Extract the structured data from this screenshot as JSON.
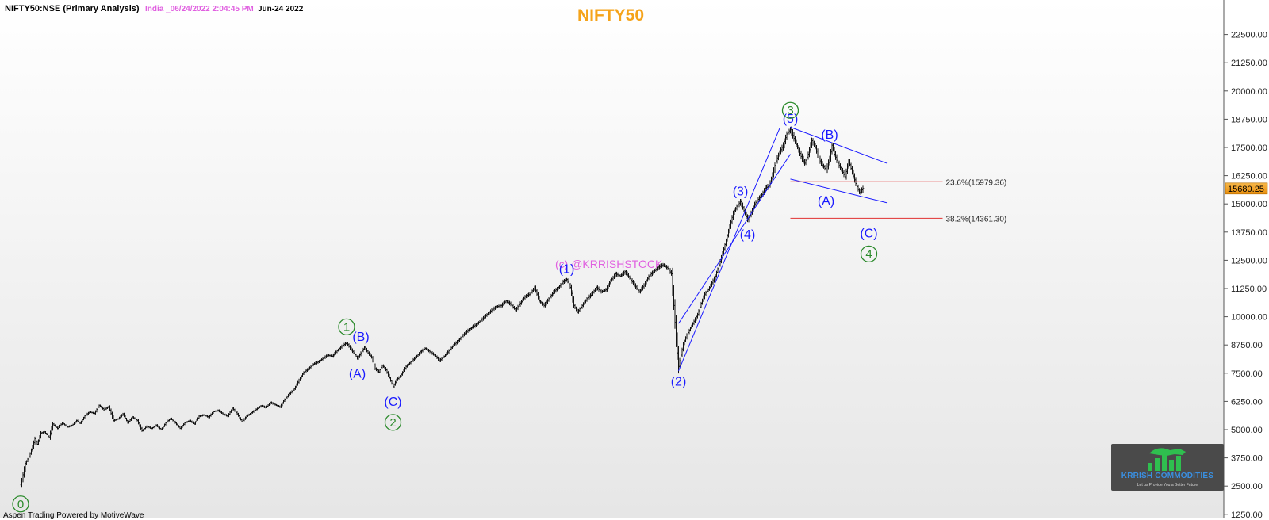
{
  "header": {
    "symbol": "NIFTY50:NSE (Primary Analysis)",
    "stamp": "India _06/24/2022 2:04:45 PM",
    "date": "Jun-24 2022"
  },
  "watermark": "(c) @KRRISHSTOCK",
  "footer": "Aspen Trading Powered by MotiveWave",
  "logo": {
    "name": "KRRISH COMMODITIES",
    "tagline": "Let us Provide You a Better Future"
  },
  "colors": {
    "title": "#f5a31a",
    "wave_minor": "#1a1aff",
    "wave_primary": "#2a8a2a",
    "fib_line": "#e03030",
    "last_price_badge": "#f39c12",
    "watermark": "#e060e0",
    "bars": "#111111"
  },
  "chart_data": {
    "type": "line",
    "title": "NIFTY50",
    "ylim": [
      1000,
      23000
    ],
    "y_ticks": [
      "1250.00",
      "2500.00",
      "3750.00",
      "5000.00",
      "6250.00",
      "7500.00",
      "8750.00",
      "10000.00",
      "11250.00",
      "12500.00",
      "13750.00",
      "15000.00",
      "16250.00",
      "17500.00",
      "18750.00",
      "20000.00",
      "21250.00",
      "22500.00"
    ],
    "grid": false,
    "last_price": "15680.25",
    "series": [
      {
        "values": [
          [
            0,
            2550
          ],
          [
            2,
            3000
          ],
          [
            4,
            3500
          ],
          [
            7,
            3800
          ],
          [
            10,
            4250
          ],
          [
            12,
            4600
          ],
          [
            14,
            4350
          ],
          [
            17,
            4850
          ],
          [
            20,
            4900
          ],
          [
            24,
            4650
          ],
          [
            27,
            5250
          ],
          [
            31,
            5050
          ],
          [
            35,
            5300
          ],
          [
            39,
            5120
          ],
          [
            43,
            5180
          ],
          [
            47,
            5400
          ],
          [
            50,
            5280
          ],
          [
            54,
            5620
          ],
          [
            58,
            5780
          ],
          [
            62,
            5720
          ],
          [
            66,
            6080
          ],
          [
            70,
            5880
          ],
          [
            74,
            6020
          ],
          [
            78,
            5400
          ],
          [
            82,
            5480
          ],
          [
            86,
            5700
          ],
          [
            90,
            5300
          ],
          [
            94,
            5560
          ],
          [
            98,
            5400
          ],
          [
            102,
            4950
          ],
          [
            106,
            5150
          ],
          [
            110,
            5050
          ],
          [
            114,
            5200
          ],
          [
            118,
            5000
          ],
          [
            122,
            5300
          ],
          [
            126,
            5500
          ],
          [
            130,
            5300
          ],
          [
            134,
            5050
          ],
          [
            138,
            5300
          ],
          [
            142,
            5400
          ],
          [
            146,
            5250
          ],
          [
            150,
            5600
          ],
          [
            154,
            5650
          ],
          [
            158,
            5550
          ],
          [
            162,
            5800
          ],
          [
            166,
            5850
          ],
          [
            170,
            5700
          ],
          [
            174,
            5600
          ],
          [
            178,
            5950
          ],
          [
            182,
            5700
          ],
          [
            186,
            5350
          ],
          [
            190,
            5600
          ],
          [
            194,
            5750
          ],
          [
            198,
            5900
          ],
          [
            202,
            6050
          ],
          [
            206,
            5980
          ],
          [
            210,
            6200
          ],
          [
            214,
            6100
          ],
          [
            218,
            6000
          ],
          [
            222,
            6350
          ],
          [
            226,
            6600
          ],
          [
            230,
            6800
          ],
          [
            234,
            7200
          ],
          [
            238,
            7550
          ],
          [
            242,
            7700
          ],
          [
            246,
            7900
          ],
          [
            250,
            8000
          ],
          [
            254,
            8150
          ],
          [
            258,
            8300
          ],
          [
            262,
            8250
          ],
          [
            266,
            8500
          ],
          [
            270,
            8700
          ],
          [
            274,
            8850
          ],
          [
            277,
            8600
          ],
          [
            280,
            8400
          ],
          [
            283,
            8150
          ],
          [
            286,
            8400
          ],
          [
            289,
            8650
          ],
          [
            292,
            8400
          ],
          [
            295,
            8200
          ],
          [
            298,
            7700
          ],
          [
            301,
            7550
          ],
          [
            304,
            7850
          ],
          [
            307,
            7650
          ],
          [
            310,
            7300
          ],
          [
            313,
            6900
          ],
          [
            316,
            7200
          ],
          [
            320,
            7450
          ],
          [
            324,
            7800
          ],
          [
            328,
            8000
          ],
          [
            332,
            8200
          ],
          [
            336,
            8450
          ],
          [
            340,
            8600
          ],
          [
            344,
            8450
          ],
          [
            348,
            8300
          ],
          [
            352,
            8050
          ],
          [
            356,
            8250
          ],
          [
            360,
            8500
          ],
          [
            364,
            8750
          ],
          [
            368,
            8950
          ],
          [
            372,
            9200
          ],
          [
            376,
            9400
          ],
          [
            380,
            9550
          ],
          [
            384,
            9700
          ],
          [
            388,
            9900
          ],
          [
            392,
            10100
          ],
          [
            396,
            10300
          ],
          [
            400,
            10450
          ],
          [
            404,
            10500
          ],
          [
            408,
            10700
          ],
          [
            412,
            10550
          ],
          [
            416,
            10300
          ],
          [
            420,
            10600
          ],
          [
            424,
            10900
          ],
          [
            428,
            11000
          ],
          [
            432,
            11300
          ],
          [
            436,
            10700
          ],
          [
            440,
            10500
          ],
          [
            444,
            10800
          ],
          [
            448,
            11100
          ],
          [
            452,
            11300
          ],
          [
            456,
            11550
          ],
          [
            459,
            11650
          ],
          [
            462,
            11300
          ],
          [
            465,
            10500
          ],
          [
            468,
            10200
          ],
          [
            472,
            10500
          ],
          [
            476,
            10800
          ],
          [
            480,
            11000
          ],
          [
            484,
            11300
          ],
          [
            488,
            11100
          ],
          [
            492,
            11200
          ],
          [
            496,
            11600
          ],
          [
            500,
            11900
          ],
          [
            504,
            11800
          ],
          [
            508,
            12000
          ],
          [
            512,
            11700
          ],
          [
            516,
            11400
          ],
          [
            520,
            11100
          ],
          [
            524,
            11400
          ],
          [
            528,
            11800
          ],
          [
            532,
            12000
          ],
          [
            536,
            12200
          ],
          [
            540,
            12300
          ],
          [
            544,
            12150
          ],
          [
            547,
            11900
          ],
          [
            549,
            10500
          ],
          [
            551,
            9000
          ],
          [
            553,
            7800
          ],
          [
            555,
            8300
          ],
          [
            557,
            8800
          ],
          [
            560,
            9200
          ],
          [
            563,
            9500
          ],
          [
            566,
            9800
          ],
          [
            569,
            10100
          ],
          [
            572,
            10600
          ],
          [
            575,
            11000
          ],
          [
            578,
            11200
          ],
          [
            581,
            11500
          ],
          [
            584,
            11800
          ],
          [
            587,
            12300
          ],
          [
            590,
            12800
          ],
          [
            593,
            13400
          ],
          [
            596,
            14000
          ],
          [
            599,
            14600
          ],
          [
            602,
            14900
          ],
          [
            605,
            15100
          ],
          [
            608,
            14700
          ],
          [
            611,
            14300
          ],
          [
            614,
            14600
          ],
          [
            617,
            15000
          ],
          [
            620,
            15200
          ],
          [
            623,
            15400
          ],
          [
            626,
            15700
          ],
          [
            629,
            15800
          ],
          [
            632,
            16300
          ],
          [
            635,
            16900
          ],
          [
            638,
            17300
          ],
          [
            641,
            17600
          ],
          [
            644,
            18100
          ],
          [
            647,
            18300
          ],
          [
            650,
            17900
          ],
          [
            653,
            17500
          ],
          [
            656,
            17100
          ],
          [
            659,
            16800
          ],
          [
            662,
            17200
          ],
          [
            665,
            17800
          ],
          [
            668,
            17500
          ],
          [
            671,
            17000
          ],
          [
            674,
            16700
          ],
          [
            677,
            16500
          ],
          [
            680,
            17000
          ],
          [
            682,
            17600
          ],
          [
            684,
            17200
          ],
          [
            687,
            16800
          ],
          [
            690,
            16500
          ],
          [
            693,
            16200
          ],
          [
            696,
            16900
          ],
          [
            699,
            16400
          ],
          [
            702,
            15900
          ],
          [
            705,
            15500
          ],
          [
            708,
            15680.25
          ]
        ]
      }
    ],
    "annotations": [
      {
        "label": "0",
        "degree": "primary",
        "x": 0,
        "y": 2550
      },
      {
        "label": "1",
        "degree": "primary",
        "x": 274,
        "y": 8850
      },
      {
        "label": "(B)",
        "degree": "minor",
        "x": 286,
        "y": 8650
      },
      {
        "label": "(A)",
        "degree": "minor",
        "x": 283,
        "y": 8150
      },
      {
        "label": "(C)",
        "degree": "minor",
        "x": 313,
        "y": 6900
      },
      {
        "label": "2",
        "degree": "primary",
        "x": 313,
        "y": 6900
      },
      {
        "label": "(1)",
        "degree": "minor",
        "x": 459,
        "y": 11650
      },
      {
        "label": "(2)",
        "degree": "minor",
        "x": 553,
        "y": 7800
      },
      {
        "label": "(3)",
        "degree": "minor",
        "x": 605,
        "y": 15100
      },
      {
        "label": "(4)",
        "degree": "minor",
        "x": 611,
        "y": 14300
      },
      {
        "label": "(5)",
        "degree": "minor",
        "x": 647,
        "y": 18300
      },
      {
        "label": "3",
        "degree": "primary",
        "x": 647,
        "y": 18300
      },
      {
        "label": "(B)",
        "degree": "minor",
        "x": 680,
        "y": 17600
      },
      {
        "label": "(A)",
        "degree": "minor",
        "x": 677,
        "y": 15800
      },
      {
        "label": "(C)",
        "degree": "minor",
        "x": 713,
        "y": 14361.3
      },
      {
        "label": "4",
        "degree": "primary",
        "x": 713,
        "y": 14361.3
      }
    ],
    "fib_levels": [
      {
        "label": "23.6%(15979.36)",
        "value": 15979.36
      },
      {
        "label": "38.2%(14361.30)",
        "value": 14361.3
      }
    ],
    "channels": [
      {
        "from": [
          553,
          7600
        ],
        "to": [
          638,
          18350
        ]
      },
      {
        "from": [
          553,
          9700
        ],
        "to": [
          647,
          17200
        ]
      },
      {
        "from": [
          647,
          18400
        ],
        "to": [
          728,
          16800
        ]
      },
      {
        "from": [
          647,
          16100
        ],
        "to": [
          728,
          15050
        ]
      }
    ]
  }
}
